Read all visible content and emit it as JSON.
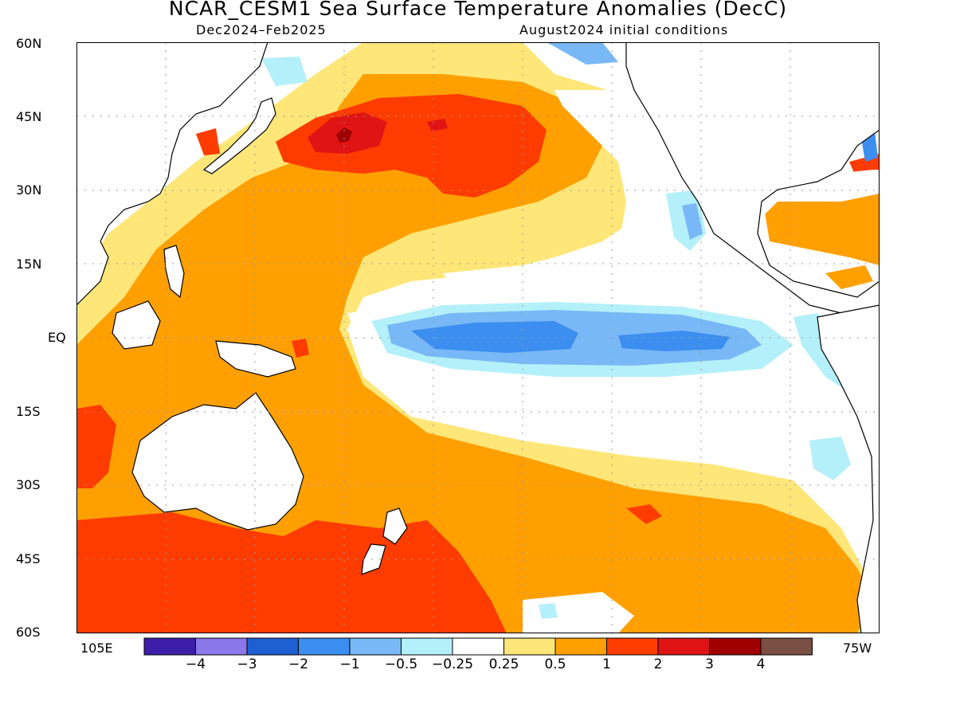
{
  "title": "NCAR_CESM1 Sea Surface Temperature Anomalies (DecC)",
  "subtitle_left": "Dec2024–Feb2025",
  "subtitle_right": "August2024 initial conditions",
  "lat_labels": [
    "60N",
    "45N",
    "30N",
    "15N",
    "EQ",
    "15S",
    "30S",
    "45S",
    "60S"
  ],
  "lon_labels": {
    "west_edge": "105E",
    "east_edge": "75W"
  },
  "colorbar": {
    "colors": [
      "#3c1ea8",
      "#8a78ea",
      "#1e5fd2",
      "#3c8ef0",
      "#78b8f6",
      "#b4f0fa",
      "#ffffff",
      "#ffe678",
      "#ffa000",
      "#ff3c00",
      "#e01414",
      "#a00000",
      "#7a5044"
    ],
    "tick_labels": [
      "−4",
      "−3",
      "−2",
      "−1",
      "−0.5",
      "−0.25",
      "0.25",
      "0.5",
      "1",
      "2",
      "3",
      "4"
    ]
  },
  "colors": {
    "land": "#ffffff",
    "coastline": "#000000",
    "gridline": "#9a9a9a"
  }
}
